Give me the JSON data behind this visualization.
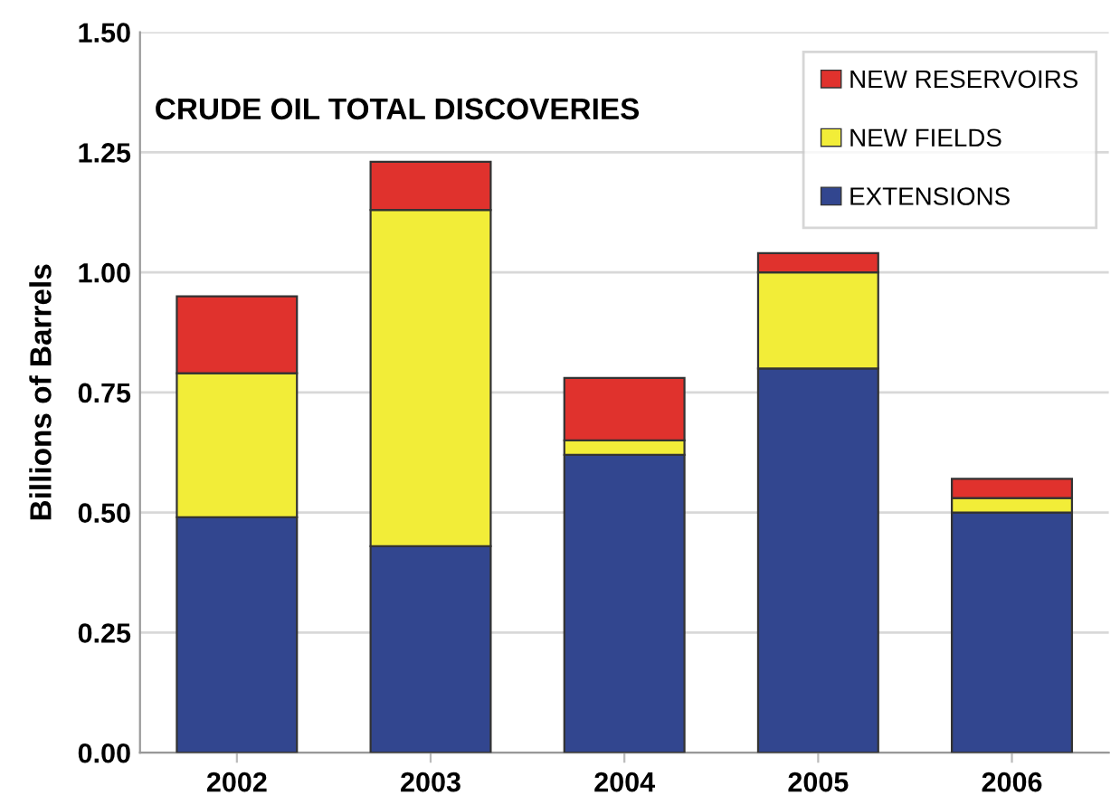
{
  "chart_data": {
    "type": "bar",
    "title": "CRUDE OIL TOTAL DISCOVERIES",
    "ylabel": "Billions of Barrels",
    "categories": [
      "2002",
      "2003",
      "2004",
      "2005",
      "2006"
    ],
    "stacked": true,
    "series": [
      {
        "name": "EXTENSIONS",
        "color": "#32468f",
        "values": [
          0.49,
          0.43,
          0.62,
          0.8,
          0.5
        ]
      },
      {
        "name": "NEW FIELDS",
        "color": "#f2ed38",
        "values": [
          0.3,
          0.7,
          0.03,
          0.2,
          0.03
        ]
      },
      {
        "name": "NEW RESERVOIRS",
        "color": "#e0322d",
        "values": [
          0.16,
          0.1,
          0.13,
          0.04,
          0.04
        ]
      }
    ],
    "ylim": [
      0,
      1.5
    ],
    "yticks": [
      {
        "value": 0,
        "label": "0.00"
      },
      {
        "value": 0.25,
        "label": "0.25"
      },
      {
        "value": 0.5,
        "label": "0.50"
      },
      {
        "value": 0.75,
        "label": "0.75"
      },
      {
        "value": 1,
        "label": "1.00"
      },
      {
        "value": 1.25,
        "label": "1.25"
      },
      {
        "value": 1.5,
        "label": "1.50"
      }
    ],
    "grid": "y",
    "legend": "top right"
  }
}
